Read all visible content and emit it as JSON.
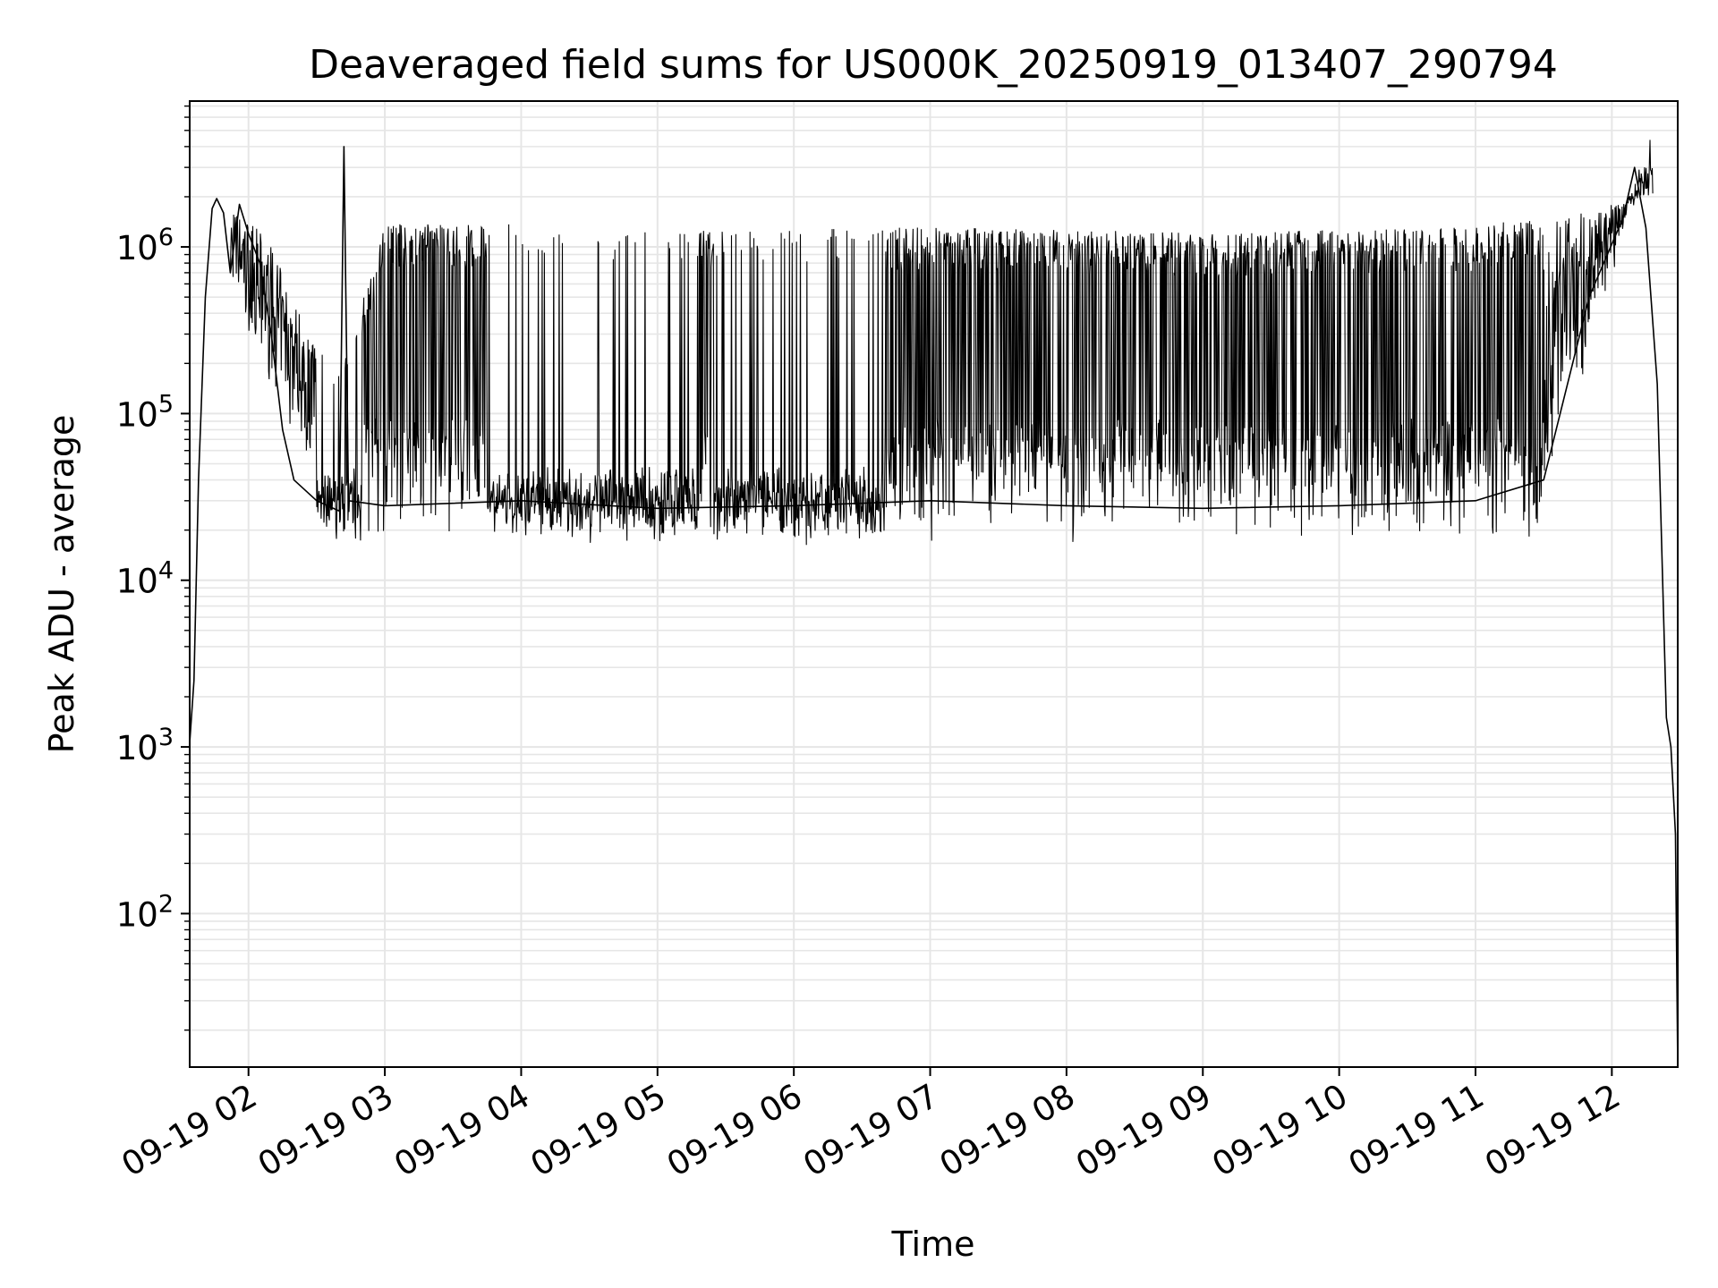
{
  "chart_data": {
    "type": "line",
    "title": "Deaveraged field sums for US000K_20250919_013407_290794",
    "xlabel": "Time",
    "ylabel": "Peak ADU - average",
    "yscale": "log",
    "ylim": [
      12,
      7500000
    ],
    "xlim": [
      "09-19 01:34:07",
      "09-19 12:29"
    ],
    "grid": true,
    "line_color": "#000000",
    "grid_color": "#e6e6e6",
    "x_ticks": [
      "09-19 02",
      "09-19 03",
      "09-19 04",
      "09-19 05",
      "09-19 06",
      "09-19 07",
      "09-19 08",
      "09-19 09",
      "09-19 10",
      "09-19 11",
      "09-19 12"
    ],
    "y_ticks": [
      {
        "value": 100,
        "base": "10",
        "exp": "2"
      },
      {
        "value": 1000,
        "base": "10",
        "exp": "3"
      },
      {
        "value": 10000,
        "base": "10",
        "exp": "4"
      },
      {
        "value": 100000,
        "base": "10",
        "exp": "5"
      },
      {
        "value": 1000000,
        "base": "10",
        "exp": "6"
      }
    ],
    "series": [
      {
        "points": [
          [
            "09-19 01:34",
            1000
          ],
          [
            "09-19 01:36",
            2500
          ],
          [
            "09-19 01:38",
            40000
          ],
          [
            "09-19 01:41",
            500000
          ],
          [
            "09-19 01:44",
            1700000
          ],
          [
            "09-19 01:46",
            1950000
          ],
          [
            "09-19 01:49",
            1600000
          ],
          [
            "09-19 01:52",
            700000
          ],
          [
            "09-19 01:56",
            1800000
          ],
          [
            "09-19 02:00",
            1200000
          ],
          [
            "09-19 02:05",
            800000
          ],
          [
            "09-19 02:10",
            300000
          ],
          [
            "09-19 02:15",
            80000
          ],
          [
            "09-19 02:20",
            40000
          ],
          [
            "09-19 02:30",
            30000
          ],
          [
            "09-19 02:40",
            26000
          ],
          [
            "09-19 02:42",
            4000000
          ],
          [
            "09-19 02:44",
            30000
          ],
          [
            "09-19 03:00",
            28000
          ],
          [
            "09-19 04:00",
            30000
          ],
          [
            "09-19 05:00",
            27000
          ],
          [
            "09-19 06:00",
            28000
          ],
          [
            "09-19 07:00",
            30000
          ],
          [
            "09-19 08:00",
            28000
          ],
          [
            "09-19 09:00",
            27000
          ],
          [
            "09-19 10:00",
            28000
          ],
          [
            "09-19 11:00",
            30000
          ],
          [
            "09-19 11:30",
            40000
          ],
          [
            "09-19 11:50",
            500000
          ],
          [
            "09-19 12:05",
            1500000
          ],
          [
            "09-19 12:10",
            3000000
          ],
          [
            "09-19 12:15",
            1300000
          ],
          [
            "09-19 12:20",
            150000
          ],
          [
            "09-19 12:24",
            1500
          ],
          [
            "09-19 12:26",
            1000
          ],
          [
            "09-19 12:28",
            300
          ],
          [
            "09-19 12:29",
            12
          ]
        ],
        "upper_envelope": [
          [
            "09-19 01:50",
            1800000
          ],
          [
            "09-19 02:00",
            1500000
          ],
          [
            "09-19 02:10",
            1000000
          ],
          [
            "09-19 02:20",
            500000
          ],
          [
            "09-19 02:30",
            300000
          ],
          [
            "09-19 02:40",
            150000
          ],
          [
            "09-19 03:00",
            1250000
          ],
          [
            "09-19 04:00",
            1250000
          ],
          [
            "09-19 05:00",
            1150000
          ],
          [
            "09-19 06:00",
            1150000
          ],
          [
            "09-19 07:00",
            1200000
          ],
          [
            "09-19 08:00",
            1150000
          ],
          [
            "09-19 09:00",
            1100000
          ],
          [
            "09-19 10:00",
            1150000
          ],
          [
            "09-19 11:00",
            1200000
          ],
          [
            "09-19 11:30",
            1400000
          ],
          [
            "09-19 12:00",
            1800000
          ],
          [
            "09-19 12:15",
            2000000
          ]
        ]
      }
    ]
  }
}
